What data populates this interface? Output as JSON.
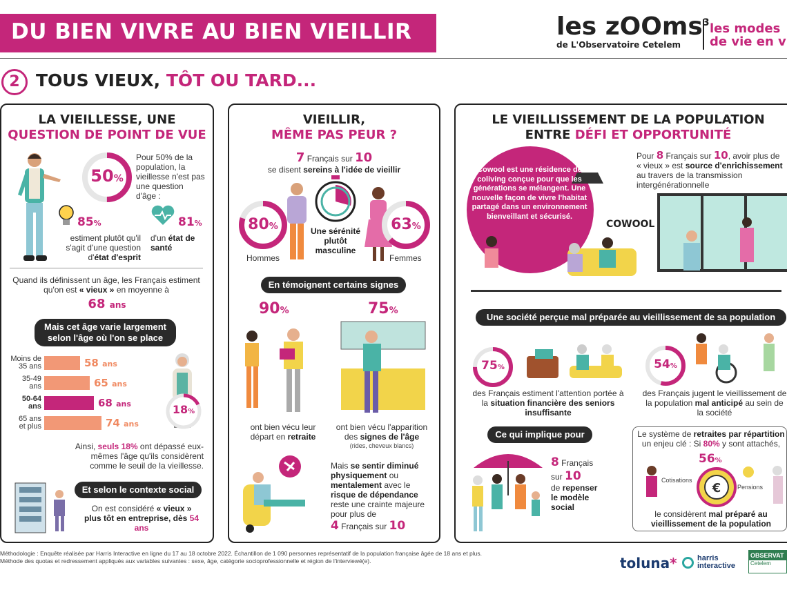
{
  "header": {
    "banner": "DU BIEN VIVRE AU BIEN VIEILLIR",
    "logo_main": "les zOOms",
    "logo_sup": "3",
    "logo_sub": "de L'Observatoire Cetelem",
    "logo_right_1": "les modes",
    "logo_right_2": "de vie en v"
  },
  "section": {
    "number": "2",
    "title_dark": "TOUS VIEUX, ",
    "title_pink": "TÔT OU TARD..."
  },
  "panel1": {
    "title_1": "LA VIEILLESSE, UNE",
    "title_2": "QUESTION DE POINT DE VUE",
    "stat_50": "50",
    "pct": "%",
    "stat_50_text": "Pour 50% de la population, la vieillesse n'est pas une question d'âge :",
    "stat_85": "85",
    "stat_85_text_1": "estiment plutôt qu'il s'agit d'une question d'",
    "stat_85_text_2": "état d'esprit",
    "stat_81": "81",
    "stat_81_text_1": "d'un ",
    "stat_81_text_2": "état de santé",
    "age_text_1": "Quand ils définissent un âge, les Français estiment qu'on est ",
    "age_text_2": "« vieux »",
    "age_text_3": " en moyenne à",
    "age_value": "68",
    "age_unit": "ans",
    "pill_1": "Mais cet âge varie largement selon l'âge où l'on se place",
    "bars": [
      {
        "label_1": "Moins de",
        "label_2": "35 ans",
        "value": 58,
        "unit": "ans",
        "highlight": false
      },
      {
        "label_1": "35-49",
        "label_2": "ans",
        "value": 65,
        "unit": "ans",
        "highlight": false
      },
      {
        "label_1": "50-64",
        "label_2": "ans",
        "value": 68,
        "unit": "ans",
        "highlight": true
      },
      {
        "label_1": "65 ans",
        "label_2": "et plus",
        "value": 74,
        "unit": "ans",
        "highlight": false
      }
    ],
    "stat_18": "18",
    "stat_18_text_1": "Ainsi, ",
    "stat_18_text_2": "seuls 18%",
    "stat_18_text_3": " ont dépassé eux-mêmes l'âge qu'ils considèrent comme le seuil de la vieillesse.",
    "pill_2": "Et selon le contexte social",
    "social_text_1": "On est considéré ",
    "social_text_2": "« vieux » plus tôt en entreprise,",
    "social_text_3": "dès ",
    "social_text_4": "54 ans"
  },
  "panel2": {
    "title_1": "VIEILLIR,",
    "title_2": "MÊME PAS PEUR ?",
    "serene_num": "7",
    "serene_mid": " Français sur ",
    "serene_den": "10",
    "serene_text_1": "se disent ",
    "serene_text_2": "sereins à l'idée de vieillir",
    "hommes_value": "80",
    "hommes_label": "Hommes",
    "femmes_value": "63",
    "femmes_label": "Femmes",
    "masculine": "Une sérénité plutôt masculine",
    "pill": "En témoignent certains signes",
    "retraite_value": "90",
    "retraite_text_1": "ont bien vécu leur départ en ",
    "retraite_text_2": "retraite",
    "signes_value": "75",
    "signes_text_1": "ont bien vécu l'apparition des ",
    "signes_text_2": "signes de l'âge",
    "signes_note": "(rides, cheveux blancs)",
    "diminue_1": "Mais ",
    "diminue_2": "se sentir diminué physiquement",
    "diminue_3": " ou ",
    "diminue_4": "mentalement",
    "diminue_5": " avec le ",
    "diminue_6": "risque de dépendance",
    "diminue_7": " reste une crainte majeure pour plus de",
    "diminue_num": "4",
    "diminue_mid": " Français sur ",
    "diminue_den": "10"
  },
  "panel3": {
    "title_1": "LE VIEILLISSEMENT DE LA POPULATION",
    "title_2a": "ENTRE ",
    "title_2b": "DÉFI ET OPPORTUNITÉ",
    "cowool_text": "Cowool est une résidence de coliving conçue pour que les générations se mélangent. Une nouvelle façon de vivre l'habitat partagé dans un environnement bienveillant et sécurisé.",
    "cowool_logo": "COWOOL",
    "enrich_1": "Pour ",
    "enrich_num": "8",
    "enrich_2": " Français sur ",
    "enrich_den": "10",
    "enrich_3": ", avoir plus de « vieux » est ",
    "enrich_4": "source d'enrichissement",
    "enrich_5": " au travers de la transmission intergénérationnelle",
    "pill_1": "Une société perçue mal préparée au vieillissement de sa population",
    "stat_75": "75",
    "stat_75_text_1": "des Français estiment l'attention portée à la ",
    "stat_75_text_2": "situation financière des seniors insuffisante",
    "stat_54": "54",
    "stat_54_text_1": "des Français jugent le vieillissement de la population ",
    "stat_54_text_2": "mal anticipé",
    "stat_54_text_3": " au sein de la société",
    "pill_2": "Ce qui implique pour",
    "modele_num": "8",
    "modele_1": " Français",
    "modele_2": "sur ",
    "modele_den": "10",
    "modele_3": "de ",
    "modele_4": "repenser le modèle social",
    "retraite_1": "Le système de ",
    "retraite_2": "retraites par répartition",
    "retraite_3": " un enjeu clé : Si ",
    "retraite_4": "80%",
    "retraite_5": " y sont attachés,",
    "retraite_value": "56",
    "cotisations": "Cotisations",
    "pensions": "Pensions",
    "retraite_6": "le considèrent ",
    "retraite_7": "mal préparé au vieillissement de la population"
  },
  "footer": {
    "line_1": "Méthodologie : Enquête réalisée par Harris Interactive en ligne du 17 au 18 octobre 2022. Échantillon de 1 090 personnes représentatif de la population française âgée de 18 ans et plus.",
    "line_2": "Méthode des quotas et redressement appliqués aux variables suivantes : sexe, âge, catégorie socioprofessionnelle et région de l'interviewé(e).",
    "toluna": "toluna",
    "harris_1": "harris",
    "harris_2": "interactive",
    "observ_1": "OBSERVAT",
    "observ_2": "Cetelem"
  },
  "colors": {
    "brand_pink": "#c4267a",
    "bar_salmon": "#f29876",
    "pill_dark": "#2a2a2a"
  }
}
